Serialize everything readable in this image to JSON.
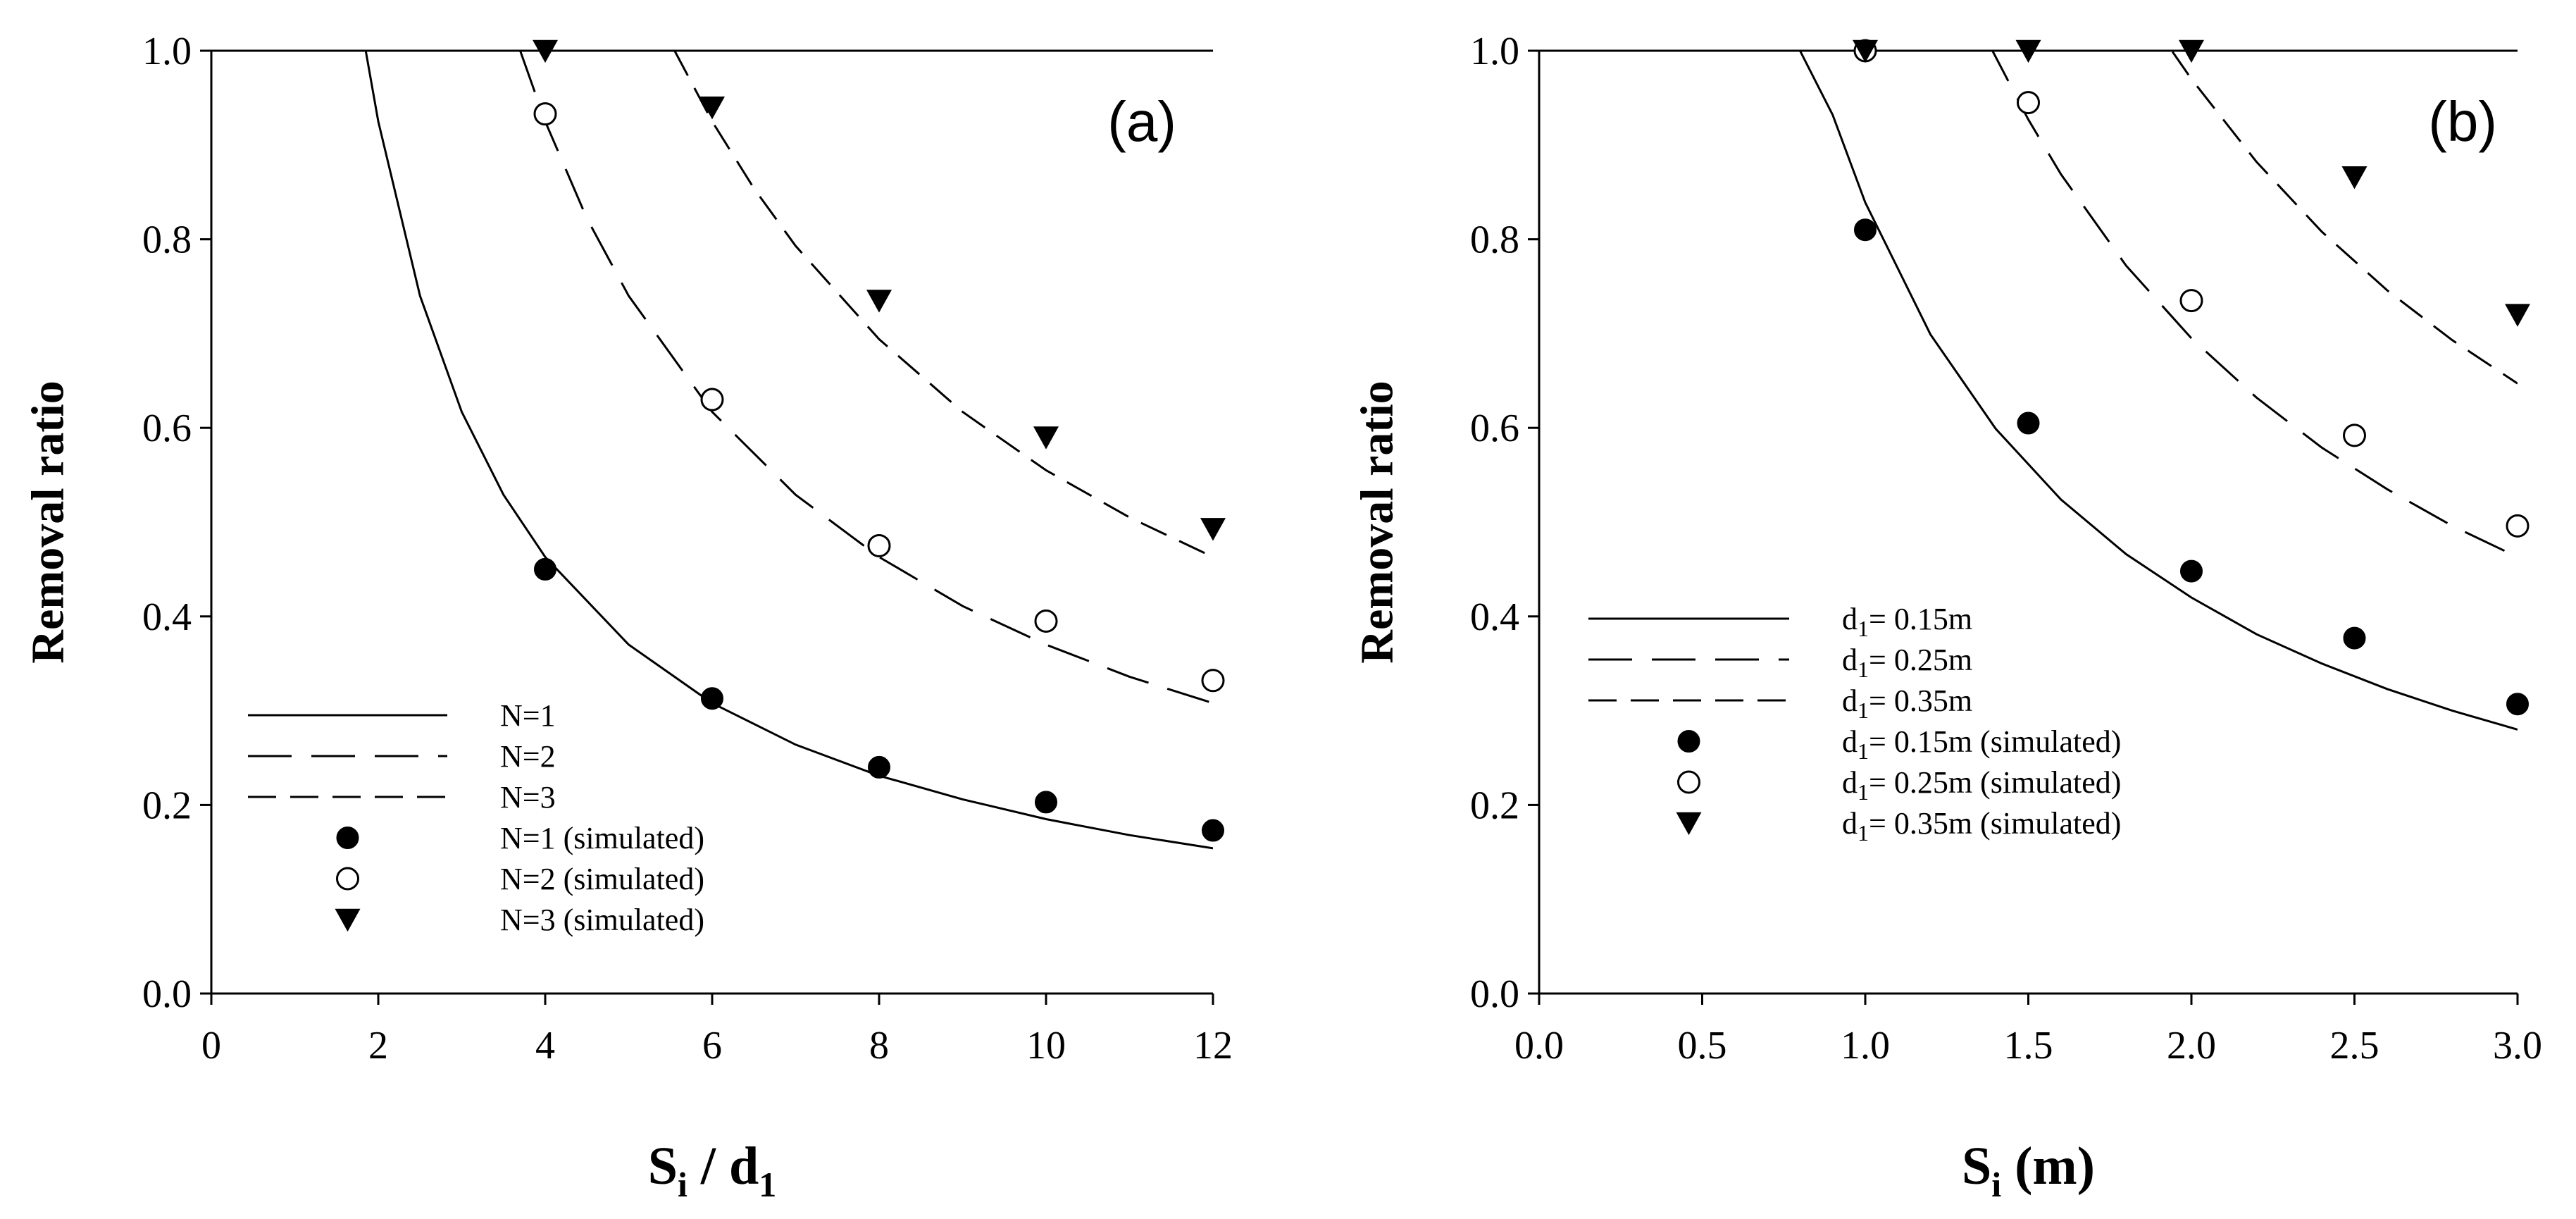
{
  "chart_data": [
    {
      "type": "line",
      "panel_label": "(a)",
      "xlabel": {
        "main": "S",
        "sub1": "i",
        "mid": " / d",
        "sub2": "1"
      },
      "ylabel": "Removal ratio",
      "xlim": [
        0,
        12
      ],
      "ylim": [
        0,
        1.0
      ],
      "xticks": [
        0,
        2,
        4,
        6,
        8,
        10,
        12
      ],
      "xtick_labels": [
        "0",
        "2",
        "4",
        "6",
        "8",
        "10",
        "12"
      ],
      "yticks": [
        0.0,
        0.2,
        0.4,
        0.6,
        0.8,
        1.0
      ],
      "ytick_labels": [
        "0.0",
        "0.2",
        "0.4",
        "0.6",
        "0.8",
        "1.0"
      ],
      "legend_position": "bottom-left",
      "series": [
        {
          "name": "N=1",
          "kind": "line",
          "style": "solid",
          "x": [
            1.85,
            2,
            2.5,
            3,
            3.5,
            4,
            5,
            6,
            7,
            8,
            9,
            10,
            11,
            12
          ],
          "y": [
            1.0,
            0.925,
            0.74,
            0.617,
            0.529,
            0.463,
            0.37,
            0.308,
            0.264,
            0.231,
            0.206,
            0.185,
            0.168,
            0.154
          ]
        },
        {
          "name": "N=2",
          "kind": "line",
          "style": "long-dash",
          "x": [
            3.7,
            4,
            4.5,
            5,
            6,
            7,
            8,
            9,
            10,
            11,
            12
          ],
          "y": [
            1.0,
            0.925,
            0.822,
            0.74,
            0.617,
            0.529,
            0.463,
            0.411,
            0.37,
            0.336,
            0.308
          ]
        },
        {
          "name": "N=3",
          "kind": "line",
          "style": "medium-dash",
          "x": [
            5.55,
            6,
            6.5,
            7,
            8,
            9,
            10,
            11,
            12
          ],
          "y": [
            1.0,
            0.925,
            0.854,
            0.793,
            0.694,
            0.617,
            0.555,
            0.505,
            0.463
          ]
        },
        {
          "name": "N=1 (simulated)",
          "kind": "scatter",
          "marker": "filled-circle",
          "x": [
            4,
            6,
            8,
            10,
            12
          ],
          "y": [
            0.45,
            0.313,
            0.24,
            0.203,
            0.173
          ]
        },
        {
          "name": "N=2 (simulated)",
          "kind": "scatter",
          "marker": "open-circle",
          "x": [
            4,
            6,
            8,
            10,
            12
          ],
          "y": [
            0.933,
            0.63,
            0.475,
            0.395,
            0.332
          ]
        },
        {
          "name": "N=3 (simulated)",
          "kind": "scatter",
          "marker": "triangle-down",
          "x": [
            4,
            6,
            8,
            10,
            12
          ],
          "y": [
            1.0,
            0.94,
            0.735,
            0.59,
            0.493
          ]
        }
      ]
    },
    {
      "type": "line",
      "panel_label": "(b)",
      "xlabel": {
        "main": "S",
        "sub1": "i",
        "mid": " (m)",
        "sub2": ""
      },
      "ylabel": "Removal ratio",
      "xlim": [
        0,
        3.0
      ],
      "ylim": [
        0,
        1.0
      ],
      "xticks": [
        0.0,
        0.5,
        1.0,
        1.5,
        2.0,
        2.5,
        3.0
      ],
      "xtick_labels": [
        "0.0",
        "0.5",
        "1.0",
        "1.5",
        "2.0",
        "2.5",
        "3.0"
      ],
      "yticks": [
        0.0,
        0.2,
        0.4,
        0.6,
        0.8,
        1.0
      ],
      "ytick_labels": [
        "0.0",
        "0.2",
        "0.4",
        "0.6",
        "0.8",
        "1.0"
      ],
      "legend_position": "bottom-left",
      "series": [
        {
          "name": "d1= 0.15m",
          "legend": {
            "pre": "d",
            "sub": "1",
            "post": "= 0.15m"
          },
          "kind": "line",
          "style": "solid",
          "x": [
            0,
            0.8,
            0.9,
            1.0,
            1.2,
            1.4,
            1.6,
            1.8,
            2.0,
            2.2,
            2.4,
            2.6,
            2.8,
            3.0
          ],
          "y": [
            1.0,
            1.0,
            0.932,
            0.839,
            0.699,
            0.599,
            0.524,
            0.466,
            0.42,
            0.381,
            0.35,
            0.323,
            0.3,
            0.28
          ]
        },
        {
          "name": "d1= 0.25m",
          "legend": {
            "pre": "d",
            "sub": "1",
            "post": "= 0.25m"
          },
          "kind": "line",
          "style": "long-dash",
          "x": [
            0,
            1.39,
            1.5,
            1.6,
            1.8,
            2.0,
            2.2,
            2.4,
            2.6,
            2.8,
            3.0
          ],
          "y": [
            1.0,
            1.0,
            0.927,
            0.869,
            0.772,
            0.695,
            0.632,
            0.579,
            0.535,
            0.496,
            0.463
          ]
        },
        {
          "name": "d1= 0.35m",
          "legend": {
            "pre": "d",
            "sub": "1",
            "post": "= 0.35m"
          },
          "kind": "line",
          "style": "medium-dash",
          "x": [
            0,
            1.94,
            2.0,
            2.2,
            2.4,
            2.6,
            2.8,
            3.0
          ],
          "y": [
            1.0,
            1.0,
            0.97,
            0.882,
            0.808,
            0.746,
            0.693,
            0.647
          ]
        },
        {
          "name": "d1= 0.15m (simulated)",
          "legend": {
            "pre": "d",
            "sub": "1",
            "post": "= 0.15m (simulated)"
          },
          "kind": "scatter",
          "marker": "filled-circle",
          "x": [
            1.0,
            1.5,
            2.0,
            2.5,
            3.0
          ],
          "y": [
            0.81,
            0.605,
            0.448,
            0.377,
            0.307
          ]
        },
        {
          "name": "d1= 0.25m (simulated)",
          "legend": {
            "pre": "d",
            "sub": "1",
            "post": "= 0.25m (simulated)"
          },
          "kind": "scatter",
          "marker": "open-circle",
          "x": [
            1.0,
            1.5,
            2.0,
            2.5,
            3.0
          ],
          "y": [
            1.0,
            0.945,
            0.735,
            0.592,
            0.496
          ]
        },
        {
          "name": "d1= 0.35m (simulated)",
          "legend": {
            "pre": "d",
            "sub": "1",
            "post": "= 0.35m (simulated)"
          },
          "kind": "scatter",
          "marker": "triangle-down",
          "x": [
            1.0,
            1.5,
            2.0,
            2.5,
            3.0
          ],
          "y": [
            1.0,
            1.0,
            1.0,
            0.866,
            0.72
          ]
        }
      ]
    }
  ]
}
